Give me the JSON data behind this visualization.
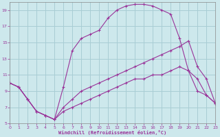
{
  "xlabel": "Windchill (Refroidissement éolien,°C)",
  "bg_color": "#cde8ec",
  "grid_color": "#a8cdd4",
  "line_color": "#993399",
  "xlim": [
    0,
    23
  ],
  "ylim": [
    5,
    20
  ],
  "xticks": [
    0,
    1,
    2,
    3,
    4,
    5,
    6,
    7,
    8,
    9,
    10,
    11,
    12,
    13,
    14,
    15,
    16,
    17,
    18,
    19,
    20,
    21,
    22,
    23
  ],
  "yticks": [
    5,
    7,
    9,
    11,
    13,
    15,
    17,
    19
  ],
  "curve1_x": [
    0,
    1,
    2,
    3,
    4,
    5,
    6,
    7,
    8,
    9,
    10,
    11,
    12,
    13,
    14,
    15,
    16,
    17,
    18,
    19,
    20,
    21,
    22,
    23
  ],
  "curve1_y": [
    10,
    9.5,
    8,
    6.5,
    6,
    5.5,
    9.5,
    14,
    15.5,
    16,
    16.5,
    18,
    19,
    19.5,
    19.7,
    19.7,
    19.5,
    19,
    18.5,
    15.5,
    11.5,
    10.5,
    8.5,
    7.5
  ],
  "curve2_x": [
    0,
    1,
    2,
    3,
    4,
    5,
    6,
    7,
    8,
    9,
    10,
    11,
    12,
    13,
    14,
    15,
    16,
    17,
    18,
    19,
    20,
    21,
    22,
    23
  ],
  "curve2_y": [
    10,
    9.5,
    8,
    6.5,
    6,
    5.5,
    7.0,
    8.0,
    9.0,
    9.5,
    10.0,
    10.5,
    11.0,
    11.5,
    12.0,
    12.5,
    13.0,
    13.5,
    14.0,
    14.5,
    15.2,
    12.0,
    10.5,
    7.5
  ],
  "curve3_x": [
    0,
    1,
    2,
    3,
    4,
    5,
    6,
    7,
    8,
    9,
    10,
    11,
    12,
    13,
    14,
    15,
    16,
    17,
    18,
    19,
    20,
    21,
    22,
    23
  ],
  "curve3_y": [
    10,
    9.5,
    8,
    6.5,
    6,
    5.5,
    6.5,
    7.0,
    7.5,
    8.0,
    8.5,
    9.0,
    9.5,
    10.0,
    10.5,
    10.5,
    11.0,
    11.0,
    11.5,
    12.0,
    11.5,
    9.0,
    8.5,
    7.5
  ]
}
